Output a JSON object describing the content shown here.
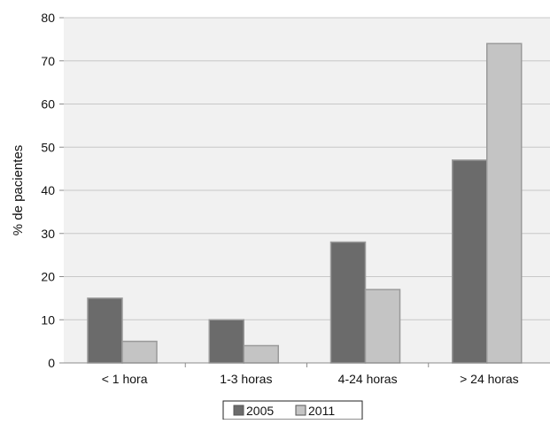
{
  "chart_data": {
    "type": "bar",
    "categories": [
      "< 1 hora",
      "1-3 horas",
      "4-24 horas",
      "> 24 horas"
    ],
    "series": [
      {
        "name": "2005",
        "values": [
          15,
          10,
          28,
          47
        ],
        "color": "#6b6b6b"
      },
      {
        "name": "2011",
        "values": [
          5,
          4,
          17,
          74
        ],
        "color": "#c4c4c4"
      }
    ],
    "ylabel": "% de pacientes",
    "xlabel": "",
    "title": "",
    "ylim": [
      0,
      80
    ],
    "yticks": [
      0,
      10,
      20,
      30,
      40,
      50,
      60,
      70,
      80
    ],
    "grid": true,
    "legend_position": "bottom-center",
    "colors": {
      "plot_background": "#f1f1f1",
      "gridline": "#c8c8c8",
      "bar_outline": "#9a9a9a"
    }
  }
}
